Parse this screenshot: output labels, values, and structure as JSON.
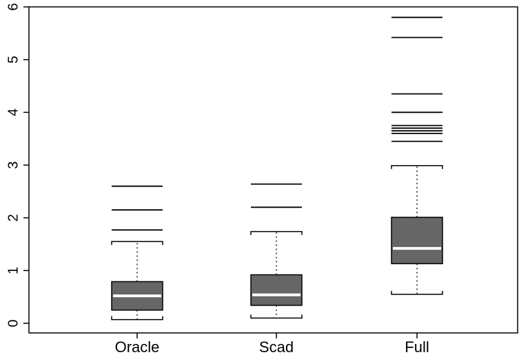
{
  "chart_data": {
    "type": "box",
    "title": "",
    "xlabel": "",
    "ylabel": "",
    "ylim": [
      -0.15,
      6.0
    ],
    "yticks": [
      0,
      1,
      2,
      3,
      4,
      5,
      6
    ],
    "ytick_labels": [
      "0",
      "1",
      "2",
      "3",
      "4",
      "5",
      "6"
    ],
    "categories": [
      "Oracle",
      "Scad",
      "Full"
    ],
    "grid": false,
    "legend": "none",
    "box_color": "#666666",
    "median_color": "#ffffff",
    "boxes": [
      {
        "name": "Oracle",
        "whisker_low": 0.07,
        "q1": 0.25,
        "median": 0.52,
        "q3": 0.79,
        "whisker_high": 1.55,
        "outliers": [
          1.77,
          2.15,
          2.6
        ]
      },
      {
        "name": "Scad",
        "whisker_low": 0.1,
        "q1": 0.34,
        "median": 0.54,
        "q3": 0.92,
        "whisker_high": 1.74,
        "outliers": [
          2.2,
          2.64
        ]
      },
      {
        "name": "Full",
        "whisker_low": 0.55,
        "q1": 1.13,
        "median": 1.42,
        "q3": 2.01,
        "whisker_high": 2.99,
        "outliers": [
          3.45,
          3.6,
          3.65,
          3.7,
          3.75,
          4.0,
          4.35,
          5.42,
          5.8
        ]
      }
    ]
  }
}
